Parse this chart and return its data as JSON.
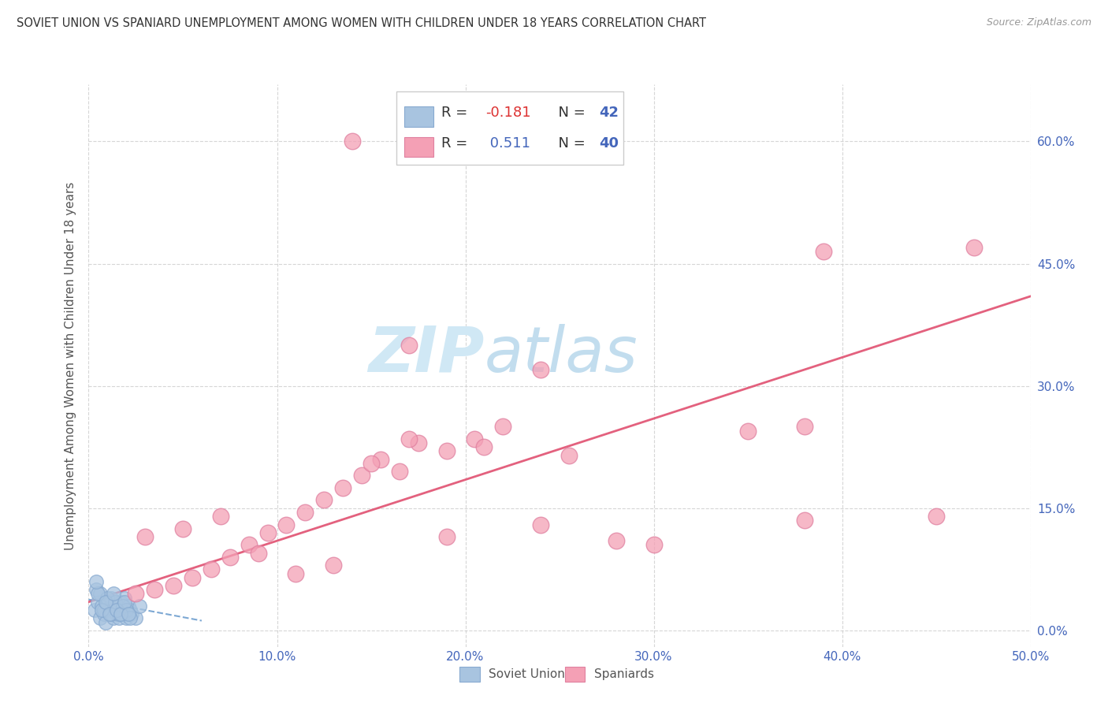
{
  "title": "SOVIET UNION VS SPANIARD UNEMPLOYMENT AMONG WOMEN WITH CHILDREN UNDER 18 YEARS CORRELATION CHART",
  "source": "Source: ZipAtlas.com",
  "ylabel": "Unemployment Among Women with Children Under 18 years",
  "xticklabels": [
    "0.0%",
    "10.0%",
    "20.0%",
    "30.0%",
    "40.0%",
    "50.0%"
  ],
  "yticklabels_right": [
    "0.0%",
    "15.0%",
    "30.0%",
    "45.0%",
    "60.0%"
  ],
  "xlim": [
    0.0,
    50.0
  ],
  "ylim": [
    -2.0,
    67.0
  ],
  "soviet_color": "#a8c4e0",
  "soviet_edge_color": "#88aad0",
  "spaniard_color": "#f4a0b5",
  "spaniard_edge_color": "#e080a0",
  "soviet_line_color": "#6699cc",
  "spaniard_line_color": "#e05070",
  "watermark": "ZIPatlas",
  "watermark_color": "#d0e8f5",
  "background_color": "#ffffff",
  "grid_color": "#cccccc",
  "title_color": "#333333",
  "axis_label_color": "#555555",
  "tick_color_blue": "#4466bb",
  "soviet_x": [
    0.3,
    0.5,
    0.6,
    0.7,
    0.8,
    0.9,
    1.0,
    1.1,
    1.2,
    1.3,
    1.4,
    1.5,
    1.6,
    1.7,
    1.8,
    1.9,
    2.0,
    2.1,
    2.2,
    2.3,
    2.5,
    2.7,
    0.4,
    0.6,
    0.8,
    1.0,
    1.2,
    1.4,
    1.6,
    1.8,
    2.0,
    2.2,
    0.5,
    0.7,
    0.9,
    1.1,
    1.3,
    1.5,
    1.7,
    1.9,
    2.1,
    0.4
  ],
  "soviet_y": [
    2.5,
    3.5,
    1.5,
    3.0,
    2.0,
    1.0,
    3.5,
    2.5,
    4.0,
    1.5,
    3.0,
    2.0,
    1.5,
    3.5,
    2.0,
    4.0,
    1.5,
    3.0,
    2.5,
    2.0,
    1.5,
    3.0,
    5.0,
    4.5,
    2.5,
    4.0,
    2.0,
    3.5,
    2.0,
    3.0,
    2.5,
    1.5,
    4.5,
    2.5,
    3.5,
    2.0,
    4.5,
    2.5,
    2.0,
    3.5,
    2.0,
    6.0
  ],
  "spaniard_x": [
    2.5,
    3.5,
    4.5,
    5.5,
    6.5,
    7.5,
    8.5,
    9.5,
    10.5,
    11.5,
    12.5,
    13.5,
    14.5,
    15.5,
    16.5,
    17.5,
    19.0,
    20.5,
    22.0,
    24.0,
    25.5,
    28.0,
    30.0,
    35.0,
    38.0,
    3.0,
    5.0,
    7.0,
    9.0,
    11.0,
    13.0,
    15.0,
    17.0,
    19.0,
    21.0,
    24.0,
    38.0,
    45.0,
    47.0
  ],
  "spaniard_y": [
    4.5,
    5.0,
    5.5,
    6.5,
    7.5,
    9.0,
    10.5,
    12.0,
    13.0,
    14.5,
    16.0,
    17.5,
    19.0,
    21.0,
    19.5,
    23.0,
    22.0,
    23.5,
    25.0,
    32.0,
    21.5,
    11.0,
    10.5,
    24.5,
    25.0,
    11.5,
    12.5,
    14.0,
    9.5,
    7.0,
    8.0,
    20.5,
    23.5,
    11.5,
    22.5,
    13.0,
    13.5,
    14.0,
    47.0
  ],
  "spaniard_outlier1_x": 17.0,
  "spaniard_outlier1_y": 35.0,
  "spaniard_outlier2_x": 14.0,
  "spaniard_outlier2_y": 60.0,
  "spaniard_outlier3_x": 39.0,
  "spaniard_outlier3_y": 46.5,
  "soviet_trend_x0": 0.0,
  "soviet_trend_y0": 3.8,
  "soviet_trend_x1": 6.0,
  "soviet_trend_y1": 1.2,
  "spaniard_trend_x0": 0.0,
  "spaniard_trend_y0": 3.5,
  "spaniard_trend_x1": 50.0,
  "spaniard_trend_y1": 41.0
}
